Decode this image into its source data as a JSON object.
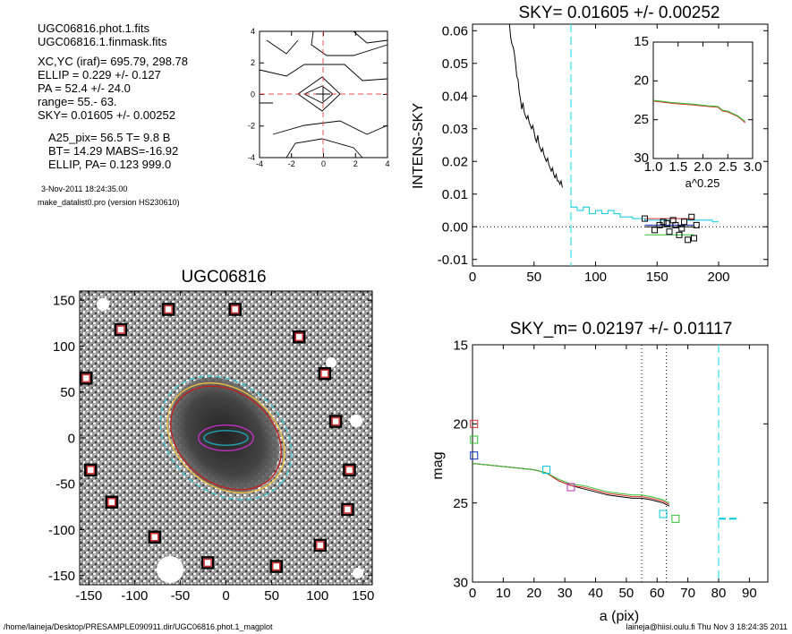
{
  "info": {
    "lines": [
      "UGC06816.phot.1.fits",
      "UGC06816.1.finmask.fits",
      "XC,YC (iraf)=   695.79, 298.78",
      "ELLIP = 0.229 +/- 0.127",
      "PA    =  52.4 +/-  24.0",
      "range=   55.-   63.",
      "SKY= 0.01605 +/- 0.00252",
      "A25_pix= 56.5   T= 9.8  B",
      "BT=  14.29   MABS=-16.92",
      "ELLIP, PA= 0.123   999.0"
    ],
    "date": "3-Nov-2011 18:24:35.00",
    "program": "make_datalist0.pro (version HS230610)"
  },
  "footer": {
    "left": "/home/laineja/Desktop/PRESAMPLE090911.dir/UGC06816.phot.1_magplot",
    "right": "laineja@hiisi.oulu.fi  Thu Nov  3 18:24:35 2011"
  },
  "chart_data": [
    {
      "type": "line",
      "id": "contour",
      "xlim": [
        -4,
        4
      ],
      "ylim": [
        -4,
        4
      ],
      "xticks": [
        "-4",
        "-2",
        "0",
        "2",
        "4"
      ],
      "yticks": [
        "-4",
        "-2",
        "0",
        "2",
        "4"
      ],
      "dashed_crosshair": [
        0,
        0
      ]
    },
    {
      "type": "line",
      "id": "sky-profile",
      "title": "SKY= 0.01605 +/- 0.00252",
      "ylabel": "INTENS-SKY",
      "xlim": [
        0,
        240
      ],
      "ylim": [
        -0.012,
        0.062
      ],
      "xticks": [
        "0",
        "50",
        "100",
        "150",
        "200"
      ],
      "yticks": [
        "-0.01",
        "0.00",
        "0.01",
        "0.02",
        "0.03",
        "0.04",
        "0.05",
        "0.06"
      ],
      "dashed_vline_x": 80,
      "series": [
        {
          "color": "#000000",
          "x": [
            30,
            31,
            32,
            33,
            34,
            35,
            36,
            37,
            38,
            39,
            40,
            41,
            42,
            43,
            44,
            45,
            46,
            47,
            48,
            49,
            50,
            51,
            52,
            53,
            54,
            55,
            56,
            57,
            58,
            59,
            60,
            61,
            62,
            63,
            64,
            65,
            66,
            67,
            68,
            69,
            70,
            71,
            72,
            73
          ],
          "y": [
            0.062,
            0.058,
            0.056,
            0.055,
            0.053,
            0.05,
            0.046,
            0.045,
            0.041,
            0.039,
            0.036,
            0.038,
            0.035,
            0.034,
            0.033,
            0.034,
            0.032,
            0.031,
            0.03,
            0.031,
            0.029,
            0.027,
            0.026,
            0.028,
            0.025,
            0.024,
            0.023,
            0.024,
            0.022,
            0.021,
            0.02,
            0.021,
            0.019,
            0.018,
            0.017,
            0.018,
            0.016,
            0.015,
            0.016,
            0.014,
            0.014,
            0.013,
            0.014,
            0.012
          ]
        },
        {
          "color": "#00c8e0",
          "x": [
            80,
            85,
            85,
            90,
            90,
            95,
            95,
            100,
            100,
            105,
            105,
            110,
            110,
            115,
            115,
            120,
            120,
            130,
            130,
            140,
            140,
            160,
            160,
            175,
            175,
            195,
            195,
            200
          ],
          "y": [
            0.006,
            0.006,
            0.005,
            0.005,
            0.006,
            0.006,
            0.004,
            0.004,
            0.005,
            0.005,
            0.004,
            0.004,
            0.005,
            0.005,
            0.004,
            0.004,
            0.003,
            0.003,
            0.0025,
            0.0025,
            0.002,
            0.002,
            0.0025,
            0.0025,
            0.002,
            0.002,
            0.0015,
            0.0015
          ]
        },
        {
          "color": "#000000",
          "x": [
            140,
            180
          ],
          "y": [
            0.0,
            0.0
          ]
        },
        {
          "color": "#30c030",
          "x": [
            140,
            180
          ],
          "y": [
            -0.0025,
            -0.0025
          ]
        },
        {
          "color": "#e03030",
          "x": [
            140,
            180
          ],
          "y": [
            0.0025,
            0.0025
          ]
        },
        {
          "color": "#1030c0",
          "x": [
            140,
            180
          ],
          "y": [
            0.0005,
            0.0005
          ]
        }
      ],
      "scatter": {
        "x": [
          140,
          148,
          152,
          155,
          158,
          160,
          163,
          165,
          168,
          170,
          172,
          175,
          178,
          180,
          182
        ],
        "y": [
          0.0025,
          -0.001,
          0.0005,
          0.0015,
          0.001,
          -0.0015,
          0.002,
          0.0005,
          -0.0025,
          -0.0005,
          0.0015,
          -0.004,
          0.003,
          -0.0035,
          0.0005
        ]
      },
      "inset": {
        "xlabel": "a^0.25",
        "xlim": [
          1.0,
          3.0
        ],
        "ylim": [
          15,
          30
        ],
        "xticks": [
          "1.0",
          "1.5",
          "2.0",
          "2.5",
          "3.0"
        ],
        "yticks": [
          "15",
          "20",
          "25",
          "30"
        ],
        "series": [
          {
            "color": "#e03030",
            "x": [
              1.0,
              1.4,
              1.8,
              2.1,
              2.3,
              2.4,
              2.5,
              2.6,
              2.7,
              2.8,
              2.85
            ],
            "y": [
              22.6,
              22.9,
              23.1,
              23.3,
              23.4,
              23.9,
              24.0,
              24.3,
              24.6,
              25.1,
              25.4
            ]
          },
          {
            "color": "#30c030",
            "x": [
              1.0,
              1.4,
              1.8,
              2.1,
              2.3,
              2.4,
              2.5,
              2.6,
              2.7,
              2.8,
              2.85
            ],
            "y": [
              22.5,
              22.8,
              23.0,
              23.2,
              23.3,
              23.8,
              23.9,
              24.2,
              24.5,
              25.0,
              25.2
            ]
          }
        ]
      }
    },
    {
      "type": "heatmap",
      "id": "galaxy-image",
      "title": "UGC06816",
      "xlim": [
        -160,
        160
      ],
      "ylim": [
        -160,
        160
      ],
      "xticks": [
        "-150",
        "-100",
        "-50",
        "0",
        "50",
        "100",
        "150"
      ],
      "yticks": [
        "-150",
        "-100",
        "-50",
        "0",
        "50",
        "100",
        "150"
      ],
      "stars": [
        [
          -63,
          140
        ],
        [
          10,
          140
        ],
        [
          -115,
          118
        ],
        [
          80,
          110
        ],
        [
          -153,
          65
        ],
        [
          108,
          70
        ],
        [
          -148,
          -35
        ],
        [
          120,
          18
        ],
        [
          -125,
          -70
        ],
        [
          135,
          -35
        ],
        [
          -78,
          -108
        ],
        [
          133,
          -78
        ],
        [
          -20,
          -136
        ],
        [
          103,
          -117
        ],
        [
          55,
          -140
        ]
      ],
      "ellipses": [
        {
          "color": "#40c8d8",
          "a": 78,
          "b": 60,
          "angle": 52,
          "dashed": true
        },
        {
          "color": "#f0c040",
          "a": 70,
          "b": 53,
          "angle": 52
        },
        {
          "color": "#c02020",
          "a": 66,
          "b": 50,
          "angle": 52
        },
        {
          "color": "#c030c0",
          "a": 30,
          "b": 14,
          "angle": 90
        },
        {
          "color": "#20a0b0",
          "a": 24,
          "b": 8,
          "angle": 90
        }
      ]
    },
    {
      "type": "line",
      "id": "mag-profile",
      "title": "SKY_m=  0.02197 +/- 0.01117",
      "xlabel": "a (pix)",
      "ylabel": "mag",
      "xlim": [
        0,
        96
      ],
      "ylim": [
        15,
        30
      ],
      "xticks": [
        "0",
        "10",
        "20",
        "30",
        "40",
        "50",
        "60",
        "70",
        "80",
        "90"
      ],
      "yticks": [
        "15",
        "20",
        "25",
        "30"
      ],
      "dotted_vlines_x": [
        55,
        63
      ],
      "dashed_vline_x": 80,
      "series": [
        {
          "color": "#000000",
          "x": [
            0,
            5,
            10,
            15,
            20,
            24,
            28,
            32,
            36,
            40,
            44,
            48,
            52,
            55,
            58,
            60,
            62,
            64
          ],
          "y": [
            22.5,
            22.6,
            22.7,
            22.8,
            22.9,
            23.1,
            23.6,
            23.9,
            24.1,
            24.3,
            24.5,
            24.6,
            24.7,
            24.7,
            24.8,
            24.9,
            25.0,
            25.2
          ]
        },
        {
          "color": "#e03030",
          "x": [
            0,
            5,
            10,
            15,
            20,
            24,
            28,
            32,
            36,
            40,
            44,
            48,
            52,
            55,
            58,
            60,
            62,
            64
          ],
          "y": [
            22.5,
            22.6,
            22.7,
            22.8,
            22.9,
            23.1,
            23.6,
            23.9,
            24.0,
            24.2,
            24.4,
            24.5,
            24.6,
            24.6,
            24.7,
            24.8,
            24.9,
            25.1
          ]
        },
        {
          "color": "#30c030",
          "x": [
            0,
            5,
            10,
            15,
            20,
            24,
            28,
            32,
            36,
            40,
            44,
            48,
            52,
            55,
            58,
            60,
            62,
            64
          ],
          "y": [
            22.5,
            22.6,
            22.7,
            22.8,
            22.9,
            23.1,
            23.5,
            23.8,
            23.9,
            24.1,
            24.3,
            24.4,
            24.5,
            24.5,
            24.6,
            24.7,
            24.8,
            25.0
          ]
        },
        {
          "color": "#00c8e0",
          "x": [
            80,
            87
          ],
          "y": [
            26.0,
            26.0
          ],
          "dashed": true
        }
      ],
      "markers": [
        {
          "color": "#e03030",
          "x": 0.5,
          "y": 20.0
        },
        {
          "color": "#30c030",
          "x": 0.5,
          "y": 21.0
        },
        {
          "color": "#1030c0",
          "x": 0.5,
          "y": 22.0
        },
        {
          "color": "#00c8e0",
          "x": 24,
          "y": 22.9
        },
        {
          "color": "#c030c0",
          "x": 32,
          "y": 24.0
        },
        {
          "color": "#00c8e0",
          "x": 62,
          "y": 25.7
        },
        {
          "color": "#30c030",
          "x": 66,
          "y": 26.0
        }
      ]
    }
  ]
}
